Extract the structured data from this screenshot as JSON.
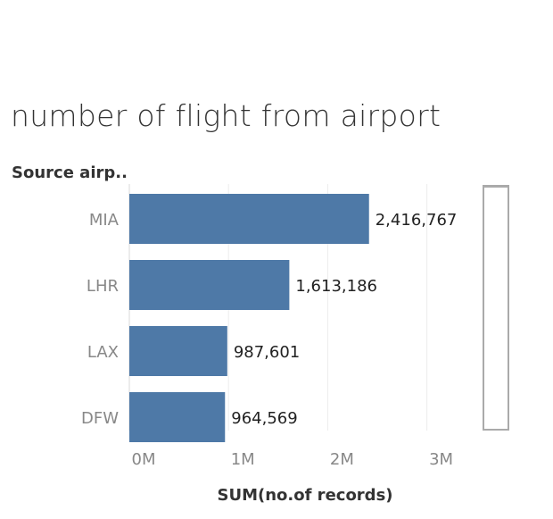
{
  "chart_data": {
    "type": "bar",
    "orientation": "horizontal",
    "title": "number of flight from airport",
    "dimension_header": "Source airp..",
    "xlabel": "SUM(no.of records)",
    "categories": [
      "MIA",
      "LHR",
      "LAX",
      "DFW"
    ],
    "values": [
      2416767,
      1613186,
      987601,
      964569
    ],
    "value_labels": [
      "2,416,767",
      "1,613,186",
      "987,601",
      "964,569"
    ],
    "xlim": [
      0,
      3600000
    ],
    "xticks": [
      0,
      1000000,
      2000000,
      3000000
    ],
    "xtick_labels": [
      "0M",
      "1M",
      "2M",
      "3M"
    ],
    "grid": "vertical",
    "bar_color": "#4e79a7"
  }
}
